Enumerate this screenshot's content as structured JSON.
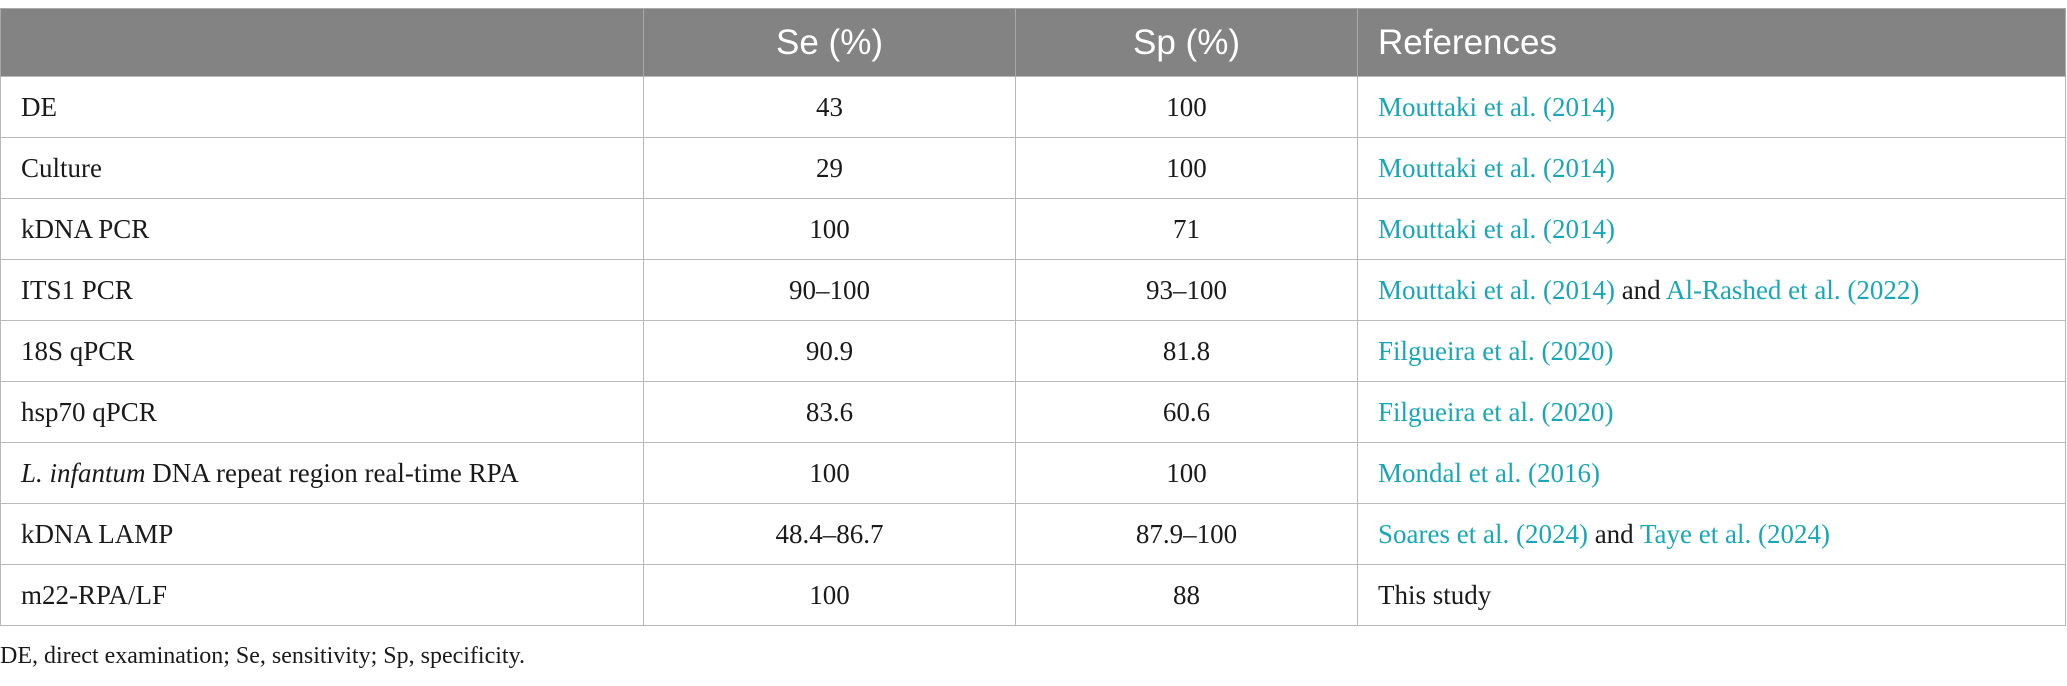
{
  "table": {
    "headers": [
      "",
      "Se (%)",
      "Sp (%)",
      "References"
    ],
    "rows": [
      {
        "method": "DE",
        "se": "43",
        "sp": "100",
        "refs": [
          "Mouttaki et al. (2014)"
        ]
      },
      {
        "method": "Culture",
        "se": "29",
        "sp": "100",
        "refs": [
          "Mouttaki et al. (2014)"
        ]
      },
      {
        "method": "kDNA PCR",
        "se": "100",
        "sp": "71",
        "refs": [
          "Mouttaki et al. (2014)"
        ]
      },
      {
        "method": "ITS1 PCR",
        "se": "90–100",
        "sp": "93–100",
        "refs": [
          "Mouttaki et al. (2014)",
          "Al-Rashed et al. (2022)"
        ]
      },
      {
        "method": "18S qPCR",
        "se": "90.9",
        "sp": "81.8",
        "refs": [
          "Filgueira et al. (2020)"
        ]
      },
      {
        "method": "hsp70 qPCR",
        "se": "83.6",
        "sp": "60.6",
        "refs": [
          "Filgueira et al. (2020)"
        ]
      },
      {
        "method_italic": "L. infantum",
        "method_rest": " DNA repeat region real-time RPA",
        "se": "100",
        "sp": "100",
        "refs": [
          "Mondal et al. (2016)"
        ]
      },
      {
        "method": "kDNA LAMP",
        "se": "48.4–86.7",
        "sp": "87.9–100",
        "refs": [
          "Soares et al. (2024)",
          "Taye et al. (2024)"
        ]
      },
      {
        "method": "m22-RPA/LF",
        "se": "100",
        "sp": "88",
        "ref_plain": "This study"
      }
    ],
    "conjunction": "and"
  },
  "footnote": "DE, direct examination; Se, sensitivity; Sp, specificity.",
  "colors": {
    "header_bg": "#838383",
    "link": "#1aa6b7",
    "border": "#b9b9b9"
  }
}
